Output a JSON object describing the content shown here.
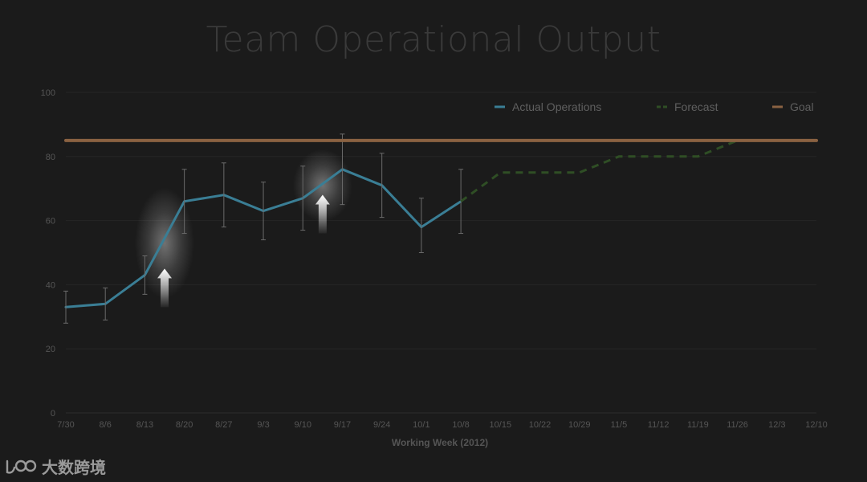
{
  "chart_data": {
    "type": "line",
    "title": "Team Operational Output",
    "xlabel": "Working Week (2012)",
    "ylabel": "",
    "ylim": [
      0,
      100
    ],
    "yticks": [
      0,
      20,
      40,
      60,
      80,
      100
    ],
    "categories": [
      "7/30",
      "8/6",
      "8/13",
      "8/20",
      "8/27",
      "9/3",
      "9/10",
      "9/17",
      "9/24",
      "10/1",
      "10/8",
      "10/15",
      "10/22",
      "10/29",
      "11/5",
      "11/12",
      "11/19",
      "11/26",
      "12/3",
      "12/10"
    ],
    "grid": true,
    "legend_position": "top-right",
    "series": [
      {
        "name": "Actual Operations",
        "color": "#3a7e95",
        "style": "solid",
        "x": [
          "7/30",
          "8/6",
          "8/13",
          "8/20",
          "8/27",
          "9/3",
          "9/10",
          "9/17",
          "9/24",
          "10/1",
          "10/8"
        ],
        "values": [
          33,
          34,
          43,
          66,
          68,
          63,
          67,
          76,
          71,
          58,
          66
        ],
        "error_low": [
          28,
          29,
          37,
          56,
          58,
          54,
          57,
          65,
          61,
          50,
          56
        ],
        "error_high": [
          38,
          39,
          49,
          76,
          78,
          72,
          77,
          87,
          81,
          67,
          76
        ]
      },
      {
        "name": "Forecast",
        "color": "#2f4e25",
        "style": "dashed",
        "x": [
          "10/8",
          "10/15",
          "10/22",
          "10/29",
          "11/5",
          "11/12",
          "11/19",
          "11/26",
          "12/3",
          "12/10"
        ],
        "values": [
          66,
          75,
          75,
          75,
          80,
          80,
          80,
          85,
          85,
          85
        ]
      },
      {
        "name": "Goal",
        "color": "#8a6242",
        "style": "solid",
        "x": [
          "7/30",
          "12/10"
        ],
        "values": [
          85,
          85
        ]
      }
    ],
    "annotations": [
      {
        "type": "arrow-up",
        "label": "",
        "x_between": [
          "8/13",
          "8/20"
        ],
        "y": 33
      },
      {
        "type": "arrow-up",
        "label": "",
        "x_between": [
          "9/10",
          "9/17"
        ],
        "y": 56
      }
    ],
    "highlights": [
      {
        "x_between": [
          "8/13",
          "8/20"
        ],
        "y": [
          42,
          64
        ]
      },
      {
        "x_between": [
          "9/10",
          "9/17"
        ],
        "y": [
          66,
          76
        ]
      }
    ]
  },
  "watermark": {
    "logo_text": "100",
    "text": "大数跨境"
  }
}
